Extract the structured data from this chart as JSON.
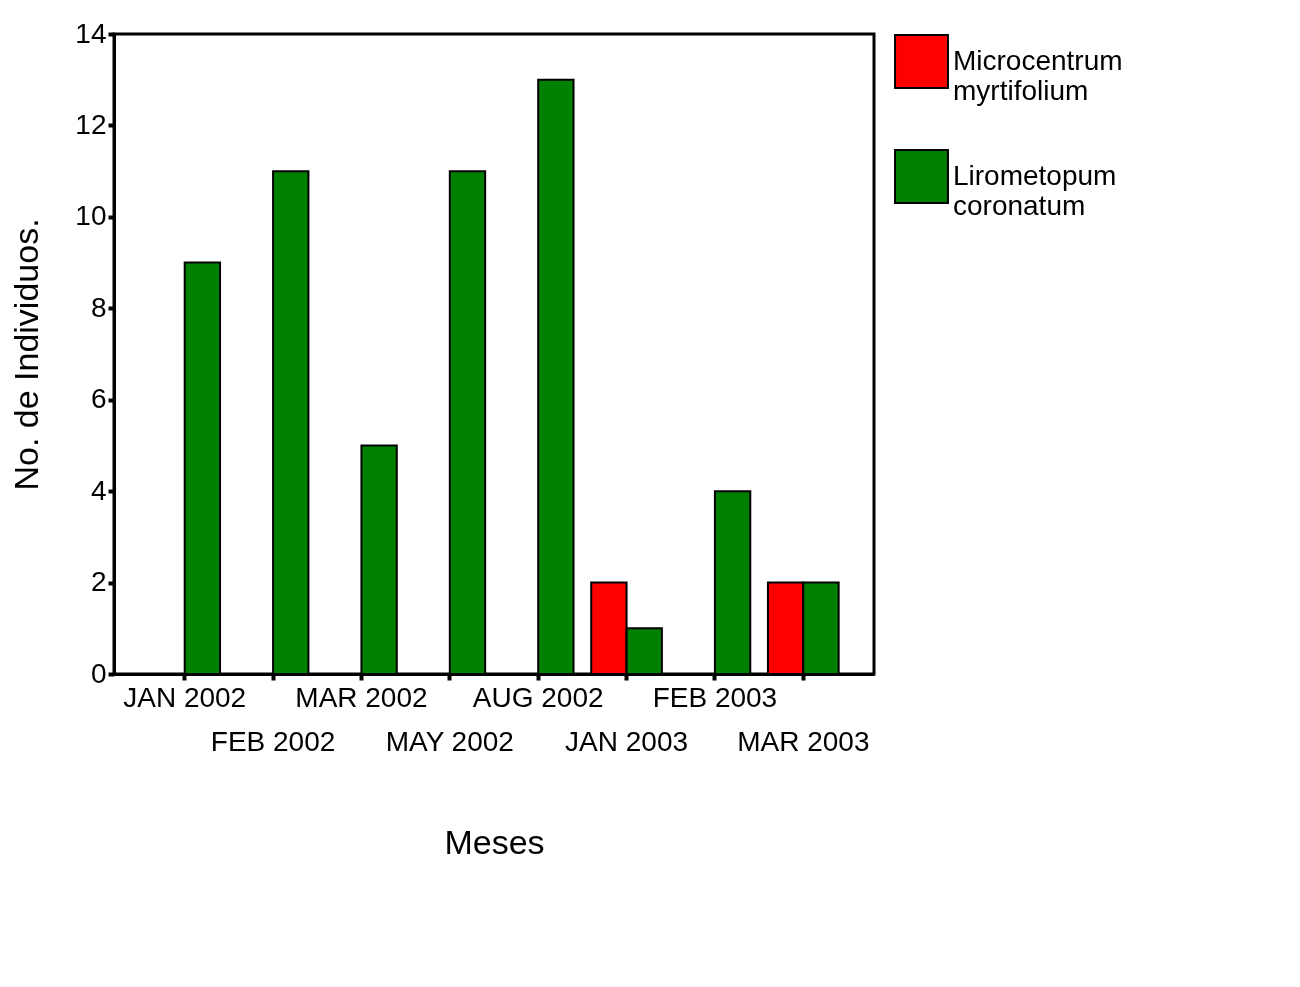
{
  "chart_data": {
    "type": "bar",
    "xlabel": "Meses",
    "ylabel": "No. de Individuos.",
    "categories": [
      "JAN 2002",
      "FEB 2002",
      "MAR 2002",
      "MAY 2002",
      "AUG 2002",
      "JAN 2003",
      "FEB 2003",
      "MAR 2003"
    ],
    "series": [
      {
        "name": "Microcentrum myrtifolium",
        "color": "#ff0000",
        "values": [
          null,
          null,
          null,
          null,
          null,
          2,
          null,
          2
        ]
      },
      {
        "name": "Lirometopum coronatum",
        "color": "#008000",
        "values": [
          9,
          11,
          5,
          11,
          13,
          1,
          4,
          2
        ]
      }
    ],
    "ylim": [
      0,
      14
    ],
    "yticks": [
      0,
      2,
      4,
      6,
      8,
      10,
      12,
      14
    ],
    "grid": false,
    "legend": "right"
  }
}
